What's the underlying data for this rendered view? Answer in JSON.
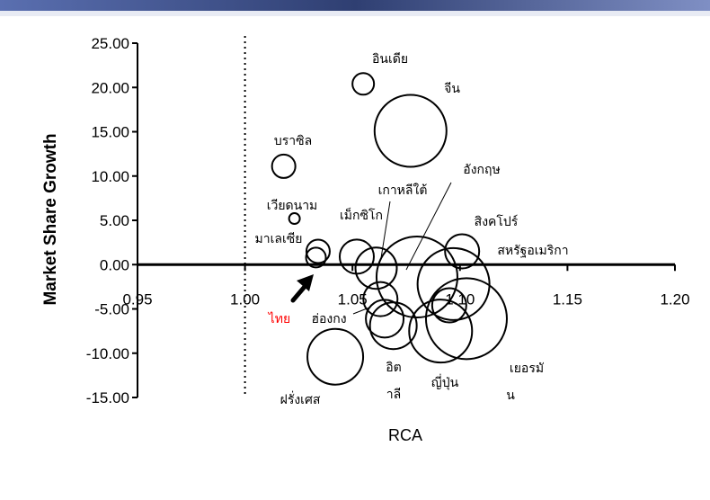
{
  "chart_data": {
    "type": "scatter",
    "title": "",
    "xlabel": "RCA",
    "ylabel": "Market Share Growth",
    "xlim": [
      0.95,
      1.2
    ],
    "ylim": [
      -15,
      25
    ],
    "x_ticks": [
      "0.95",
      "1.00",
      "1.05",
      "1.10",
      "1.15",
      "1.20"
    ],
    "y_ticks": [
      "25.00",
      "20.00",
      "15.00",
      "10.00",
      "5.00",
      "0.00",
      "-5.00",
      "-10.00",
      "-15.00"
    ],
    "reference_line_x": 1.0,
    "legend": "none",
    "grid": false,
    "bubbles": [
      {
        "x": 1.055,
        "y": 20.4,
        "r": 12,
        "label": "อินเดีย"
      },
      {
        "x": 1.077,
        "y": 15.1,
        "r": 40,
        "label": "จีน"
      },
      {
        "x": 1.018,
        "y": 11.1,
        "r": 13,
        "label": "บราซิล"
      },
      {
        "x": 1.023,
        "y": 5.2,
        "r": 6,
        "label": "เวียดนาม"
      },
      {
        "x": 1.034,
        "y": 1.5,
        "r": 13,
        "label": "มาเลเซีย"
      },
      {
        "x": 1.033,
        "y": 0.8,
        "r": 11,
        "label": "ไทย"
      },
      {
        "x": 1.052,
        "y": 0.9,
        "r": 19,
        "label": "เม็กซิโก"
      },
      {
        "x": 1.061,
        "y": -0.4,
        "r": 23,
        "label": "เกาหลีใต้"
      },
      {
        "x": 1.063,
        "y": -3.9,
        "r": 19,
        "label": "ฮ่องกง"
      },
      {
        "x": 1.065,
        "y": -6.1,
        "r": 21,
        "label": ""
      },
      {
        "x": 1.08,
        "y": -1.4,
        "r": 45,
        "label": "อังกฤษ"
      },
      {
        "x": 1.101,
        "y": 1.5,
        "r": 19,
        "label": "สิงคโปร์"
      },
      {
        "x": 1.097,
        "y": -2.2,
        "r": 40,
        "label": "สหรัฐอเมริกา"
      },
      {
        "x": 1.095,
        "y": -4.6,
        "r": 19,
        "label": ""
      },
      {
        "x": 1.103,
        "y": -6.1,
        "r": 45,
        "label": "เยอรมัน"
      },
      {
        "x": 1.091,
        "y": -7.5,
        "r": 35,
        "label": "ญี่ปุ่น"
      },
      {
        "x": 1.069,
        "y": -6.9,
        "r": 26,
        "label": "อิตาลี"
      },
      {
        "x": 1.042,
        "y": -10.4,
        "r": 31,
        "label": "ฝรั่งเศส"
      }
    ]
  },
  "colors": {
    "highlight_label": "#ff0000",
    "axis": "#000000",
    "bubble_stroke": "#000000",
    "top_bar": "#3a4f8a"
  }
}
